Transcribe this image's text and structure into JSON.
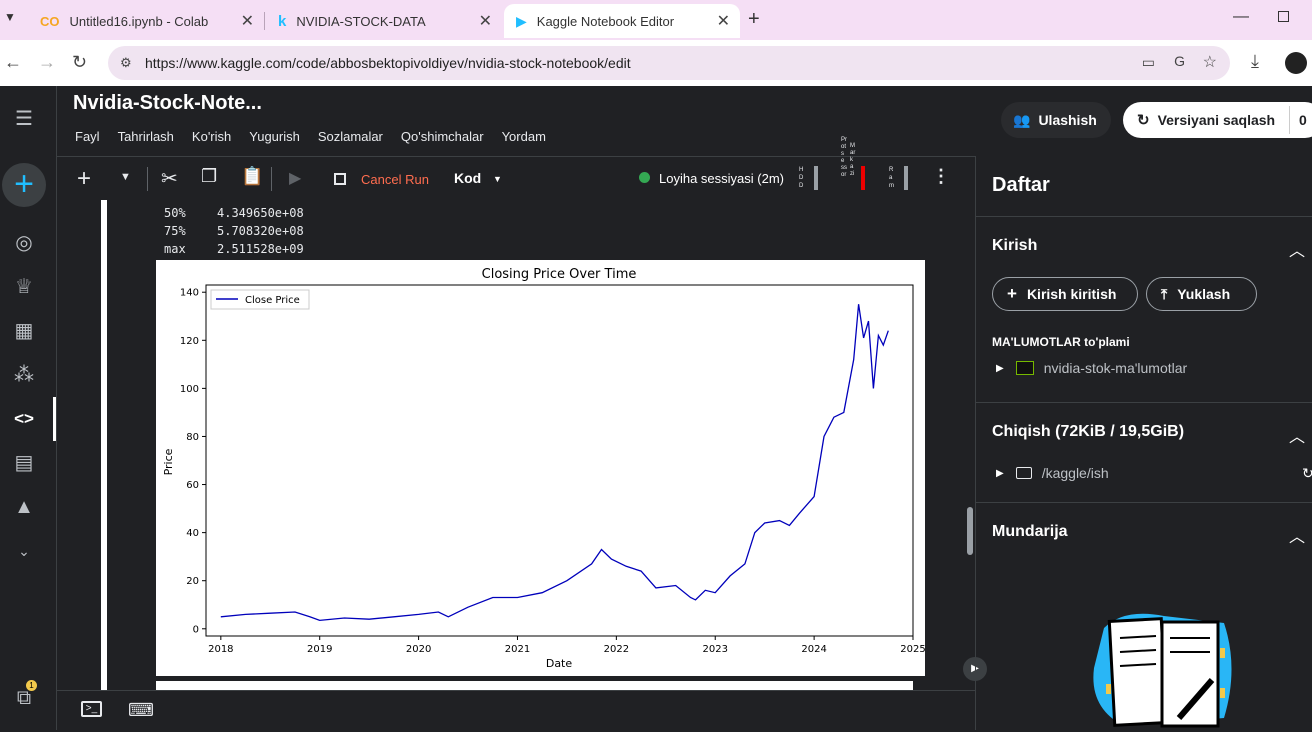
{
  "browser": {
    "tabs": [
      {
        "title": "Untitled16.ipynb - Colab"
      },
      {
        "title": "NVIDIA-STOCK-DATA"
      },
      {
        "title": "Kaggle Notebook Editor"
      }
    ],
    "url": "https://www.kaggle.com/code/abbosbektopivoldiyev/nvidia-stock-notebook/edit"
  },
  "notebook": {
    "title": "Nvidia-Stock-Note...",
    "menus": [
      "Fayl",
      "Tahrirlash",
      "Ko'rish",
      "Yugurish",
      "Sozlamalar",
      "Qo'shimchalar",
      "Yordam"
    ],
    "share_label": "Ulashish",
    "save_label": "Versiyani saqlash",
    "save_count": "0"
  },
  "toolbar": {
    "cancel_run": "Cancel Run",
    "cell_type": "Kod",
    "session": "Loyiha sessiyasi (2m)",
    "hdd": "HDD",
    "cpu": "Protsessor",
    "gpu": "Markazi",
    "ram": "Ram"
  },
  "output": {
    "stats": [
      {
        "label": "50%",
        "value": "4.349650e+08"
      },
      {
        "label": "75%",
        "value": "5.708320e+08"
      },
      {
        "label": "max",
        "value": "2.511528e+09"
      }
    ]
  },
  "chart_data": {
    "type": "line",
    "title": "Closing Price Over Time",
    "xlabel": "Date",
    "ylabel": "Price",
    "xlim": [
      2017.85,
      2025.0
    ],
    "ylim": [
      -3,
      143
    ],
    "xticks": [
      "2018",
      "2019",
      "2020",
      "2021",
      "2022",
      "2023",
      "2024",
      "2025"
    ],
    "yticks": [
      "0",
      "20",
      "40",
      "60",
      "80",
      "100",
      "120",
      "140"
    ],
    "legend": "top-left",
    "series": [
      {
        "name": "Close Price",
        "color": "#0000bb",
        "x": [
          2018.0,
          2018.25,
          2018.5,
          2018.75,
          2018.9,
          2019.0,
          2019.25,
          2019.5,
          2019.75,
          2020.0,
          2020.2,
          2020.3,
          2020.5,
          2020.75,
          2021.0,
          2021.25,
          2021.5,
          2021.75,
          2021.85,
          2021.95,
          2022.1,
          2022.25,
          2022.4,
          2022.6,
          2022.75,
          2022.8,
          2022.9,
          2023.0,
          2023.15,
          2023.3,
          2023.4,
          2023.5,
          2023.65,
          2023.75,
          2023.85,
          2024.0,
          2024.1,
          2024.2,
          2024.3,
          2024.4,
          2024.45,
          2024.5,
          2024.55,
          2024.6,
          2024.65,
          2024.7,
          2024.75
        ],
        "values": [
          5,
          6,
          6.5,
          7,
          5,
          3.5,
          4.5,
          4,
          5,
          6,
          7,
          5,
          9,
          13,
          13,
          15,
          20,
          27,
          33,
          29,
          26,
          24,
          17,
          18,
          13,
          12,
          16,
          15,
          22,
          27,
          40,
          44,
          45,
          43,
          48,
          55,
          80,
          88,
          90,
          112,
          135,
          121,
          128,
          100,
          122,
          118,
          124
        ]
      }
    ]
  },
  "right_panel": {
    "title": "Daftar",
    "input_section": "Kirish",
    "add_input": "Kirish kiritish",
    "upload": "Yuklash",
    "datasets_label": "MA'LUMOTLAR to'plami",
    "dataset_name": "nvidia-stok-ma'lumotlar",
    "output_section": "Chiqish (72KiB / 19,5GiB)",
    "output_path": "/kaggle/ish",
    "toc_section": "Mundarija"
  },
  "left_nav": {
    "badge": "1"
  }
}
